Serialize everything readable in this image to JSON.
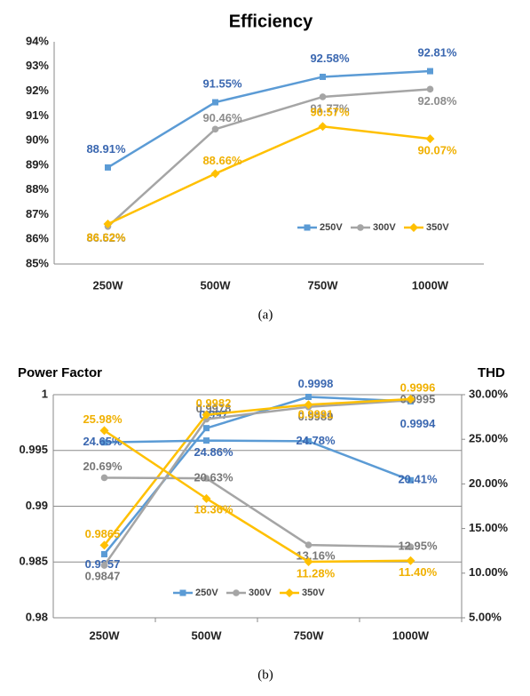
{
  "chart_data": [
    {
      "type": "line",
      "title": "Efficiency",
      "caption": "(a)",
      "categories": [
        "250W",
        "500W",
        "750W",
        "1000W"
      ],
      "ylim": [
        85,
        94
      ],
      "yticks": [
        {
          "value": 85,
          "label": "85%"
        },
        {
          "value": 86,
          "label": "86%"
        },
        {
          "value": 87,
          "label": "87%"
        },
        {
          "value": 88,
          "label": "88%"
        },
        {
          "value": 89,
          "label": "89%"
        },
        {
          "value": 90,
          "label": "90%"
        },
        {
          "value": 91,
          "label": "91%"
        },
        {
          "value": 92,
          "label": "92%"
        },
        {
          "value": 93,
          "label": "93%"
        },
        {
          "value": 94,
          "label": "94%"
        }
      ],
      "grid": false,
      "legend": "bottom-right",
      "series": [
        {
          "name": "250V",
          "color": "#5b9bd5",
          "label_color": "#3a67b0",
          "marker": "square",
          "values": [
            88.91,
            91.55,
            92.58,
            92.81
          ],
          "value_labels": [
            "88.91%",
            "91.55%",
            "92.58%",
            "92.81%"
          ]
        },
        {
          "name": "300V",
          "color": "#a5a5a5",
          "label_color": "#8c8c8c",
          "marker": "circle",
          "values": [
            86.52,
            90.46,
            91.77,
            92.08
          ],
          "value_labels": [
            "86.52%",
            "90.46%",
            "91.77%",
            "92.08%"
          ]
        },
        {
          "name": "350V",
          "color": "#ffc000",
          "label_color": "#f0b000",
          "marker": "diamond",
          "values": [
            86.62,
            88.66,
            90.57,
            90.07
          ],
          "value_labels": [
            "86.62%",
            "88.66%",
            "90.57%",
            "90.07%"
          ]
        }
      ]
    },
    {
      "type": "line",
      "ylabel": "Power Factor",
      "y2label": "THD",
      "caption": "(b)",
      "categories": [
        "250W",
        "500W",
        "750W",
        "1000W"
      ],
      "ylim": [
        0.98,
        1
      ],
      "yticks": [
        0.98,
        0.985,
        0.99,
        0.995,
        1
      ],
      "y2lim": [
        5,
        30
      ],
      "y2ticks": [
        {
          "value": 5,
          "label": "5.00%"
        },
        {
          "value": 10,
          "label": "10.00%"
        },
        {
          "value": 15,
          "label": "15.00%"
        },
        {
          "value": 20,
          "label": "20.00%"
        },
        {
          "value": 25,
          "label": "25.00%"
        },
        {
          "value": 30,
          "label": "30.00%"
        }
      ],
      "grid": true,
      "legend": "bottom",
      "series": [
        {
          "name": "250V",
          "color": "#5b9bd5",
          "label_color": "#3a67b0",
          "marker": "square",
          "values": [
            0.9857,
            0.997,
            0.9998,
            0.9994
          ]
        },
        {
          "name": "300V",
          "color": "#a5a5a5",
          "label_color": "#777777",
          "marker": "circle",
          "values": [
            0.9847,
            0.9978,
            0.9989,
            0.9995
          ]
        },
        {
          "name": "350V",
          "color": "#ffc000",
          "label_color": "#f0b000",
          "marker": "diamond",
          "values": [
            0.9865,
            0.9982,
            0.9991,
            0.9996
          ]
        },
        {
          "axis": "y2",
          "color": "#5b9bd5",
          "label_color": "#3a67b0",
          "marker": "square",
          "values": [
            24.65,
            24.86,
            24.78,
            20.41
          ],
          "value_labels": [
            "24.65%",
            "24.86%",
            "24.78%",
            "20.41%"
          ]
        },
        {
          "axis": "y2",
          "color": "#a5a5a5",
          "label_color": "#777777",
          "marker": "circle",
          "values": [
            20.69,
            20.63,
            13.16,
            12.95
          ],
          "value_labels": [
            "20.69%",
            "20.63%",
            "13.16%",
            "12.95%"
          ]
        },
        {
          "axis": "y2",
          "color": "#ffc000",
          "label_color": "#f0b000",
          "marker": "diamond",
          "values": [
            25.98,
            18.36,
            11.28,
            11.4
          ],
          "value_labels": [
            "25.98%",
            "18.36%",
            "11.28%",
            "11.40%"
          ]
        }
      ]
    }
  ]
}
